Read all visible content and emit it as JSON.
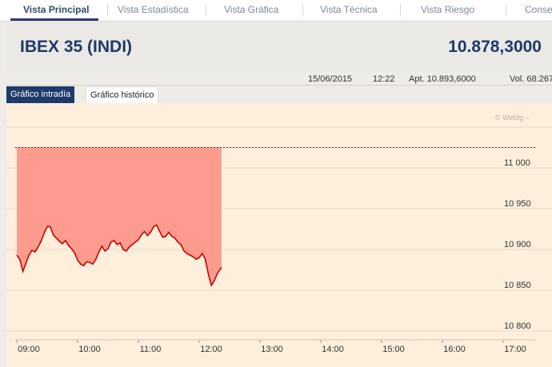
{
  "nav_tabs": [
    {
      "label": "Vista Principal",
      "active": true
    },
    {
      "label": "Vista Estadística"
    },
    {
      "label": "Vista Gráfica"
    },
    {
      "label": "Vista Técnica"
    },
    {
      "label": "Vista Riesgo"
    },
    {
      "label": "Conse"
    }
  ],
  "instrument": {
    "name": "IBEX 35 (INDI)",
    "price": "10.878,3000"
  },
  "info": {
    "date": "15/06/2015",
    "time": "12:22",
    "open": "Apt. 10.893,6000",
    "volume": "Vol. 68.267"
  },
  "chart_tabs": {
    "intraday": "Gráfico intradía",
    "historic": "Gráfico histórico"
  },
  "watermark": "© Webfg –",
  "colors": {
    "nav_active": "#2e4a6b",
    "title": "#1e3a6a",
    "chart_bg": "#fdefdc",
    "area_fill": "#fd9c8e",
    "line": "#cc0000"
  },
  "chart_data": {
    "type": "line",
    "title": "",
    "xlabel": "",
    "ylabel": "",
    "x_ticks": [
      "09:00",
      "10:00",
      "11:00",
      "12:00",
      "13:00",
      "14:00",
      "15:00",
      "16:00",
      "17:00"
    ],
    "y_ticks": [
      "11 000",
      "10 950",
      "10 900",
      "10 850",
      "10 800"
    ],
    "y_tick_values": [
      11000,
      10950,
      10900,
      10850,
      10800
    ],
    "ylim": [
      10800,
      11030
    ],
    "xlim": [
      "08:55",
      "17:20"
    ],
    "reference_line": 11025,
    "grid": "horizontal",
    "series": [
      {
        "x": [
          "09:00",
          "09:03",
          "09:06",
          "09:09",
          "09:12",
          "09:15",
          "09:18",
          "09:21",
          "09:24",
          "09:27",
          "09:30",
          "09:33",
          "09:36",
          "09:39",
          "09:42",
          "09:45",
          "09:48",
          "09:51",
          "09:54",
          "09:57",
          "10:00",
          "10:03",
          "10:06",
          "10:09",
          "10:12",
          "10:15",
          "10:18",
          "10:21",
          "10:24",
          "10:27",
          "10:30",
          "10:33",
          "10:36",
          "10:39",
          "10:42",
          "10:45",
          "10:48",
          "10:51",
          "10:54",
          "10:57",
          "11:00",
          "11:03",
          "11:06",
          "11:09",
          "11:12",
          "11:15",
          "11:18",
          "11:21",
          "11:24",
          "11:27",
          "11:30",
          "11:33",
          "11:36",
          "11:39",
          "11:42",
          "11:45",
          "11:48",
          "11:51",
          "11:54",
          "11:57",
          "12:00",
          "12:03",
          "12:06",
          "12:09",
          "12:12",
          "12:15",
          "12:18",
          "12:22"
        ],
        "values": [
          10893,
          10888,
          10873,
          10883,
          10893,
          10899,
          10897,
          10903,
          10910,
          10920,
          10928,
          10928,
          10918,
          10914,
          10910,
          10907,
          10911,
          10905,
          10901,
          10896,
          10887,
          10882,
          10880,
          10885,
          10884,
          10882,
          10888,
          10897,
          10904,
          10898,
          10901,
          10909,
          10911,
          10906,
          10908,
          10900,
          10898,
          10903,
          10906,
          10909,
          10912,
          10918,
          10922,
          10917,
          10921,
          10928,
          10930,
          10922,
          10915,
          10916,
          10921,
          10916,
          10914,
          10909,
          10906,
          10898,
          10895,
          10893,
          10891,
          10888,
          10890,
          10895,
          10888,
          10870,
          10856,
          10862,
          10871,
          10878
        ]
      }
    ]
  }
}
